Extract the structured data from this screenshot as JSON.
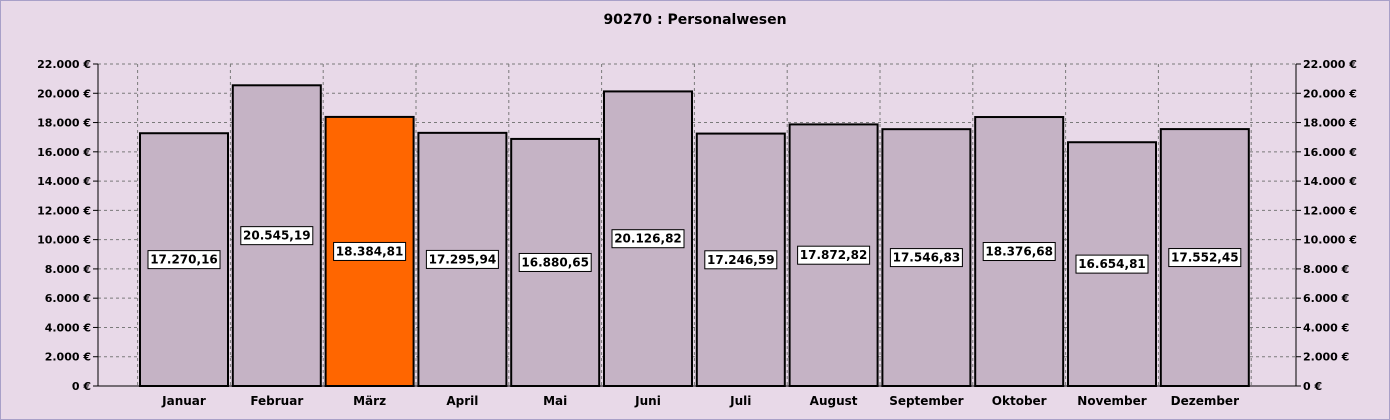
{
  "chart_data": {
    "type": "bar",
    "title": "90270 : Personalwesen",
    "categories": [
      "Januar",
      "Februar",
      "März",
      "April",
      "Mai",
      "Juni",
      "Juli",
      "August",
      "September",
      "Oktober",
      "November",
      "Dezember"
    ],
    "values": [
      17270.16,
      20545.19,
      18384.81,
      17295.94,
      16880.65,
      20126.82,
      17246.59,
      17872.82,
      17546.83,
      18376.68,
      16654.81,
      17552.45
    ],
    "value_labels": [
      "17.270,16",
      "20.545,19",
      "18.384,81",
      "17.295,94",
      "16.880,65",
      "20.126,82",
      "17.246,59",
      "17.872,82",
      "17.546,83",
      "18.376,68",
      "16.654,81",
      "17.552,45"
    ],
    "highlight_index": 2,
    "ylim": [
      0,
      22000
    ],
    "yticks": [
      0,
      2000,
      4000,
      6000,
      8000,
      10000,
      12000,
      14000,
      16000,
      18000,
      20000,
      22000
    ],
    "ytick_labels": [
      "0 €",
      "2.000 €",
      "4.000 €",
      "6.000 €",
      "8.000 €",
      "10.000 €",
      "12.000 €",
      "14.000 €",
      "16.000 €",
      "18.000 €",
      "20.000 €",
      "22.000 €"
    ],
    "grid": true,
    "xlabel": "",
    "ylabel": "",
    "colors": {
      "bar": "#c5b3c5",
      "highlight": "#ff6600",
      "background": "#e8d9e8",
      "grid": "#7a7a7a"
    }
  }
}
